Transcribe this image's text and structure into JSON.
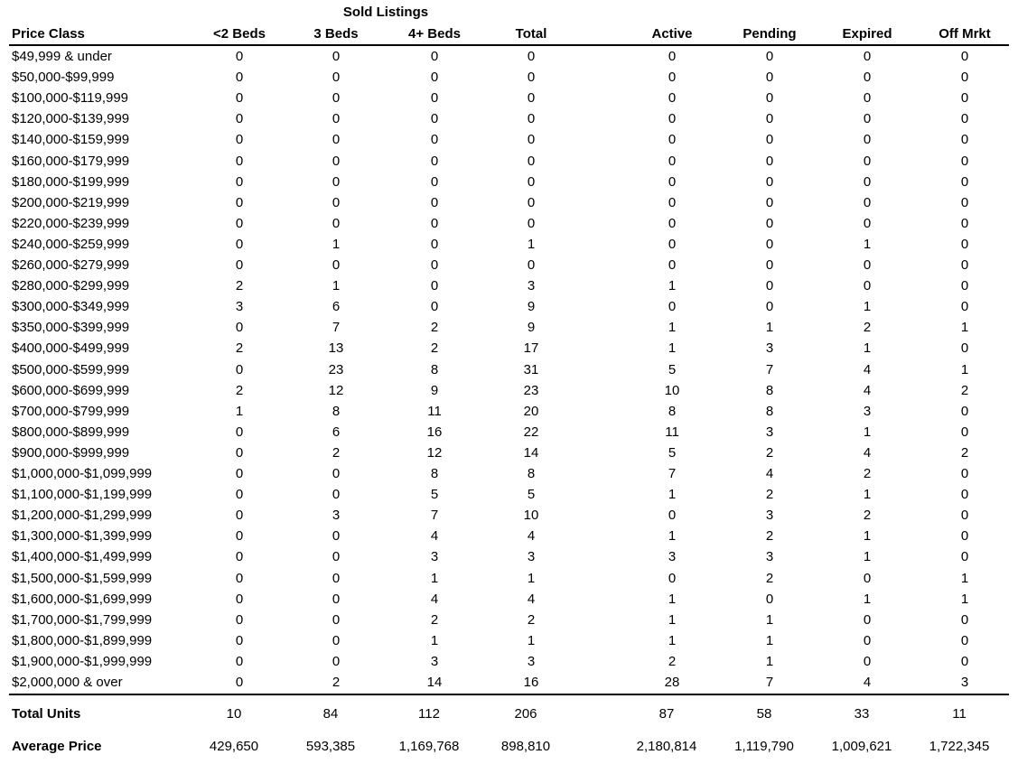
{
  "table": {
    "title": "Sold Listings",
    "headers": [
      "Price Class",
      "<2 Beds",
      "3 Beds",
      "4+ Beds",
      "Total",
      "Active",
      "Pending",
      "Expired",
      "Off Mrkt"
    ],
    "rows": [
      [
        "$49,999 & under",
        0,
        0,
        0,
        0,
        0,
        0,
        0,
        0
      ],
      [
        "$50,000-$99,999",
        0,
        0,
        0,
        0,
        0,
        0,
        0,
        0
      ],
      [
        "$100,000-$119,999",
        0,
        0,
        0,
        0,
        0,
        0,
        0,
        0
      ],
      [
        "$120,000-$139,999",
        0,
        0,
        0,
        0,
        0,
        0,
        0,
        0
      ],
      [
        "$140,000-$159,999",
        0,
        0,
        0,
        0,
        0,
        0,
        0,
        0
      ],
      [
        "$160,000-$179,999",
        0,
        0,
        0,
        0,
        0,
        0,
        0,
        0
      ],
      [
        "$180,000-$199,999",
        0,
        0,
        0,
        0,
        0,
        0,
        0,
        0
      ],
      [
        "$200,000-$219,999",
        0,
        0,
        0,
        0,
        0,
        0,
        0,
        0
      ],
      [
        "$220,000-$239,999",
        0,
        0,
        0,
        0,
        0,
        0,
        0,
        0
      ],
      [
        "$240,000-$259,999",
        0,
        1,
        0,
        1,
        0,
        0,
        1,
        0
      ],
      [
        "$260,000-$279,999",
        0,
        0,
        0,
        0,
        0,
        0,
        0,
        0
      ],
      [
        "$280,000-$299,999",
        2,
        1,
        0,
        3,
        1,
        0,
        0,
        0
      ],
      [
        "$300,000-$349,999",
        3,
        6,
        0,
        9,
        0,
        0,
        1,
        0
      ],
      [
        "$350,000-$399,999",
        0,
        7,
        2,
        9,
        1,
        1,
        2,
        1
      ],
      [
        "$400,000-$499,999",
        2,
        13,
        2,
        17,
        1,
        3,
        1,
        0
      ],
      [
        "$500,000-$599,999",
        0,
        23,
        8,
        31,
        5,
        7,
        4,
        1
      ],
      [
        "$600,000-$699,999",
        2,
        12,
        9,
        23,
        10,
        8,
        4,
        2
      ],
      [
        "$700,000-$799,999",
        1,
        8,
        11,
        20,
        8,
        8,
        3,
        0
      ],
      [
        "$800,000-$899,999",
        0,
        6,
        16,
        22,
        11,
        3,
        1,
        0
      ],
      [
        "$900,000-$999,999",
        0,
        2,
        12,
        14,
        5,
        2,
        4,
        2
      ],
      [
        "$1,000,000-$1,099,999",
        0,
        0,
        8,
        8,
        7,
        4,
        2,
        0
      ],
      [
        "$1,100,000-$1,199,999",
        0,
        0,
        5,
        5,
        1,
        2,
        1,
        0
      ],
      [
        "$1,200,000-$1,299,999",
        0,
        3,
        7,
        10,
        0,
        3,
        2,
        0
      ],
      [
        "$1,300,000-$1,399,999",
        0,
        0,
        4,
        4,
        1,
        2,
        1,
        0
      ],
      [
        "$1,400,000-$1,499,999",
        0,
        0,
        3,
        3,
        3,
        3,
        1,
        0
      ],
      [
        "$1,500,000-$1,599,999",
        0,
        0,
        1,
        1,
        0,
        2,
        0,
        1
      ],
      [
        "$1,600,000-$1,699,999",
        0,
        0,
        4,
        4,
        1,
        0,
        1,
        1
      ],
      [
        "$1,700,000-$1,799,999",
        0,
        0,
        2,
        2,
        1,
        1,
        0,
        0
      ],
      [
        "$1,800,000-$1,899,999",
        0,
        0,
        1,
        1,
        1,
        1,
        0,
        0
      ],
      [
        "$1,900,000-$1,999,999",
        0,
        0,
        3,
        3,
        2,
        1,
        0,
        0
      ],
      [
        "$2,000,000 & over",
        0,
        2,
        14,
        16,
        28,
        7,
        4,
        3
      ]
    ],
    "totals": [
      [
        "Total Units",
        10,
        84,
        112,
        206,
        87,
        58,
        33,
        11
      ],
      [
        "Average Price",
        "429,650",
        "593,385",
        "1,169,768",
        "898,810",
        "2,180,814",
        "1,119,790",
        "1,009,621",
        "1,722,345"
      ]
    ]
  }
}
